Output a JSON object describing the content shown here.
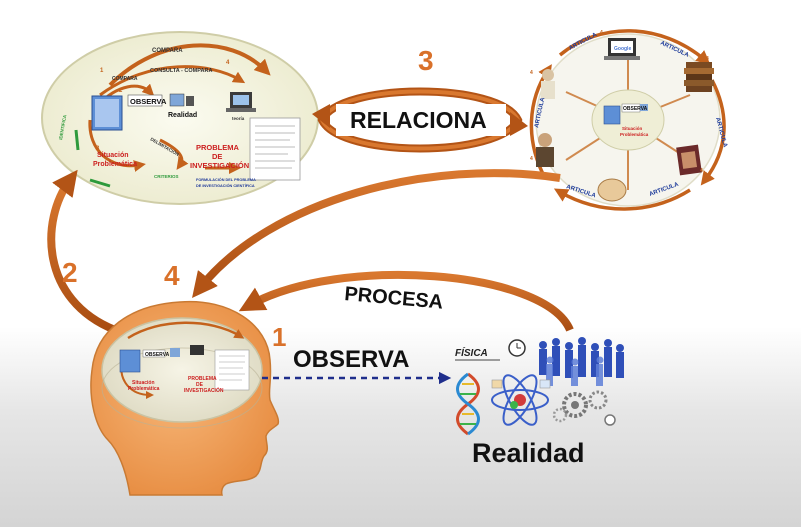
{
  "steps": {
    "step1": "1",
    "step2": "2",
    "step3": "3",
    "step4": "4"
  },
  "actions": {
    "observa": "OBSERVA",
    "relaciona": "RELACIONA",
    "procesa": "PROCESA"
  },
  "realidad": {
    "label": "Realidad",
    "fisica": "FÍSICA"
  },
  "process_map": {
    "compara": "COMPARA",
    "consulta_compara": "CONSULTA - COMPARA",
    "compara_small": "COMPARA",
    "observa": "OBSERVA",
    "realidad": "Realidad",
    "teoria": "teoría",
    "situacion_line1": "Situación",
    "situacion_line2": "Problemática",
    "problema_line1": "PROBLEMA",
    "problema_line2": "DE",
    "problema_line3": "INVESTIGACIÓN",
    "formulacion_line1": "FORMULACIÓN DEL PROBLEMA",
    "formulacion_line2": "DE INVESTIGACIÓN CIENTÍFICA",
    "identifica": "IDENTIFICA",
    "criterios": "CRITERIOS",
    "delimitacion": "DELIMITACIÓN",
    "num_1": "1",
    "num_2": "2",
    "num_3": "3",
    "num_4": "4",
    "num_5": "5"
  },
  "relation_map": {
    "articula": "ARTICULA",
    "google": "Google",
    "observa": "OBSERVA",
    "situacion_line1": "Situación",
    "situacion_line2": "Problemática",
    "num_4": "4"
  },
  "colors": {
    "arrow": "#c4621c",
    "arrow_dark": "#9a4510",
    "step_number": "#d9712a",
    "ellipse_fill": "#f3f2dc",
    "head_skin": "#f2a15b",
    "observa_dash": "#1f2e8c",
    "articula_text": "#1c3a9a",
    "problema_red": "#cc1f1f"
  }
}
